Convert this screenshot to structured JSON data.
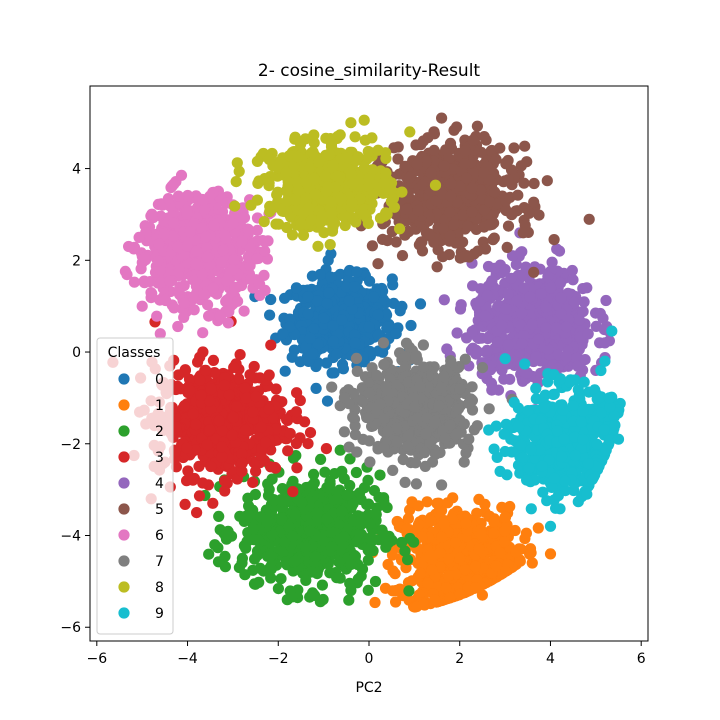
{
  "chart_data": {
    "type": "scatter",
    "title": "2- cosine_similarity-Result",
    "xlabel": "PC2",
    "ylabel": "",
    "xlim": [
      -6.15,
      6.15
    ],
    "ylim": [
      -6.3,
      5.8
    ],
    "x_ticks": [
      -6,
      -4,
      -2,
      0,
      2,
      4,
      6
    ],
    "y_ticks": [
      -6,
      -4,
      -2,
      0,
      2,
      4
    ],
    "grid": false,
    "legend": {
      "title": "Classes",
      "placement": "lower-left"
    },
    "series": [
      {
        "name": "0",
        "color": "#1f77b4",
        "center": [
          -0.6,
          0.7
        ],
        "spread": [
          1.0,
          0.8
        ],
        "sample_points": [
          [
            -0.6,
            0.7
          ],
          [
            -1.3,
            0.3
          ],
          [
            0.1,
            1.2
          ],
          [
            -0.2,
            -0.2
          ],
          [
            -1.6,
            1.4
          ],
          [
            0.6,
            0.4
          ],
          [
            -0.9,
            2.0
          ],
          [
            -1.9,
            0.4
          ]
        ]
      },
      {
        "name": "1",
        "color": "#ff7f0e",
        "center": [
          2.0,
          -4.5
        ],
        "spread": [
          1.2,
          1.0
        ],
        "sample_points": [
          [
            2.0,
            -4.5
          ],
          [
            1.2,
            -5.5
          ],
          [
            3.0,
            -3.6
          ],
          [
            2.5,
            -5.3
          ],
          [
            1.5,
            -3.3
          ],
          [
            3.6,
            -4.6
          ],
          [
            0.6,
            -5.2
          ],
          [
            4.0,
            -4.4
          ]
        ]
      },
      {
        "name": "2",
        "color": "#2ca02c",
        "center": [
          -1.3,
          -3.9
        ],
        "spread": [
          1.4,
          1.1
        ],
        "sample_points": [
          [
            -1.3,
            -3.9
          ],
          [
            -2.8,
            -4.6
          ],
          [
            -0.4,
            -5.2
          ],
          [
            -2.2,
            -3.0
          ],
          [
            -0.6,
            -2.6
          ],
          [
            -3.4,
            -4.2
          ],
          [
            -1.8,
            -5.4
          ],
          [
            0.0,
            -4.3
          ]
        ]
      },
      {
        "name": "3",
        "color": "#d62728",
        "center": [
          -3.3,
          -1.5
        ],
        "spread": [
          1.3,
          1.1
        ],
        "sample_points": [
          [
            -3.3,
            -1.5
          ],
          [
            -4.5,
            -2.4
          ],
          [
            -2.2,
            -0.5
          ],
          [
            -4.2,
            -0.5
          ],
          [
            -2.5,
            -2.6
          ],
          [
            -4.8,
            -3.2
          ],
          [
            -1.6,
            -1.3
          ],
          [
            -3.8,
            -3.5
          ]
        ]
      },
      {
        "name": "4",
        "color": "#9467bd",
        "center": [
          3.6,
          0.6
        ],
        "spread": [
          1.2,
          1.1
        ],
        "sample_points": [
          [
            3.6,
            0.6
          ],
          [
            4.8,
            1.4
          ],
          [
            2.4,
            0.0
          ],
          [
            4.2,
            2.2
          ],
          [
            5.2,
            0.2
          ],
          [
            3.0,
            1.8
          ],
          [
            2.2,
            -0.3
          ],
          [
            5.0,
            -0.4
          ]
        ]
      },
      {
        "name": "5",
        "color": "#8c564b",
        "center": [
          1.8,
          3.4
        ],
        "spread": [
          1.3,
          1.0
        ],
        "sample_points": [
          [
            1.8,
            3.4
          ],
          [
            0.6,
            2.4
          ],
          [
            2.8,
            4.2
          ],
          [
            1.2,
            4.6
          ],
          [
            3.4,
            2.6
          ],
          [
            0.9,
            3.8
          ],
          [
            2.4,
            2.2
          ],
          [
            1.6,
            5.1
          ]
        ]
      },
      {
        "name": "6",
        "color": "#e377c2",
        "center": [
          -3.8,
          2.2
        ],
        "spread": [
          1.2,
          1.1
        ],
        "sample_points": [
          [
            -3.8,
            2.2
          ],
          [
            -5.0,
            1.0
          ],
          [
            -2.6,
            1.6
          ],
          [
            -4.2,
            3.4
          ],
          [
            -3.0,
            2.8
          ],
          [
            -5.3,
            2.3
          ],
          [
            -2.3,
            2.2
          ],
          [
            -4.6,
            0.4
          ]
        ]
      },
      {
        "name": "7",
        "color": "#7f7f7f",
        "center": [
          1.0,
          -1.2
        ],
        "spread": [
          1.1,
          0.9
        ],
        "sample_points": [
          [
            1.0,
            -1.2
          ],
          [
            0.0,
            -0.9
          ],
          [
            2.0,
            -0.8
          ],
          [
            1.4,
            -2.4
          ],
          [
            -0.3,
            -1.8
          ],
          [
            2.2,
            -1.9
          ],
          [
            0.8,
            -0.1
          ],
          [
            1.6,
            -2.9
          ]
        ]
      },
      {
        "name": "8",
        "color": "#bcbd22",
        "center": [
          -0.9,
          3.6
        ],
        "spread": [
          1.2,
          0.8
        ],
        "sample_points": [
          [
            -0.9,
            3.6
          ],
          [
            -2.2,
            4.2
          ],
          [
            0.2,
            4.4
          ],
          [
            -1.5,
            2.8
          ],
          [
            0.4,
            3.0
          ],
          [
            -2.6,
            3.2
          ],
          [
            -0.4,
            5.0
          ],
          [
            0.9,
            4.8
          ]
        ]
      },
      {
        "name": "9",
        "color": "#17becf",
        "center": [
          4.3,
          -1.9
        ],
        "spread": [
          1.0,
          1.0
        ],
        "sample_points": [
          [
            4.3,
            -1.9
          ],
          [
            5.3,
            -1.0
          ],
          [
            3.4,
            -2.3
          ],
          [
            4.8,
            -3.1
          ],
          [
            3.2,
            -1.1
          ],
          [
            5.5,
            -1.9
          ],
          [
            4.0,
            -3.8
          ],
          [
            5.2,
            -0.2
          ]
        ]
      }
    ]
  }
}
